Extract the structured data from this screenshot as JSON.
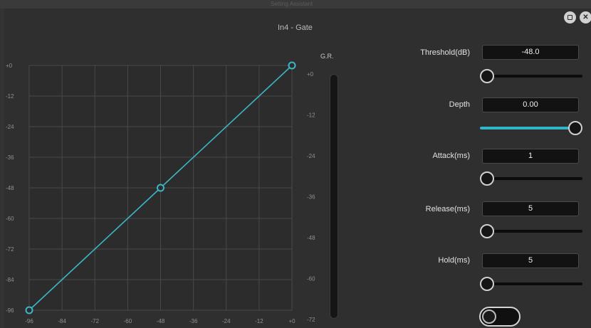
{
  "window": {
    "title": "In4 - Gate",
    "bg_title": "Setting Assistant",
    "restore_icon": "restore-icon",
    "close_glyph": "✕"
  },
  "graph": {
    "y_ticks": [
      "+0",
      "-12",
      "-24",
      "-36",
      "-48",
      "-60",
      "-72",
      "-84",
      "-96"
    ],
    "x_ticks": [
      "-96",
      "-84",
      "-72",
      "-60",
      "-48",
      "-36",
      "-24",
      "-12",
      "+0"
    ],
    "curve_points": [
      [
        -96,
        -96
      ],
      [
        -48,
        -48
      ],
      [
        0,
        0
      ]
    ],
    "curve_color": "#3bb7c6"
  },
  "gr_meter": {
    "label": "G.R.",
    "ticks": [
      "+0",
      "-12",
      "-24",
      "-36",
      "-48",
      "-60",
      "-72"
    ]
  },
  "params": {
    "threshold": {
      "label": "Threshold(dB)",
      "value": "-48.0",
      "slider_fraction": 0.0
    },
    "depth": {
      "label": "Depth",
      "value": "0.00",
      "slider_fraction": 1.0
    },
    "attack": {
      "label": "Attack(ms)",
      "value": "1",
      "slider_fraction": 0.0
    },
    "release": {
      "label": "Release(ms)",
      "value": "5",
      "slider_fraction": 0.0
    },
    "hold": {
      "label": "Hold(ms)",
      "value": "5",
      "slider_fraction": 0.0
    }
  },
  "bypass": {
    "on": false
  },
  "accent_color": "#2fb7c8"
}
